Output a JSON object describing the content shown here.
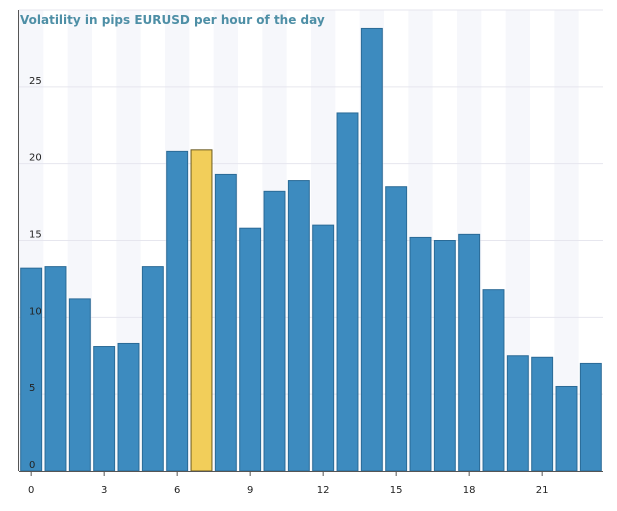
{
  "chart_data": {
    "type": "bar",
    "title": "Volatility in pips EURUSD per hour of the day",
    "xlabel": "",
    "ylabel": "",
    "categories": [
      0,
      1,
      2,
      3,
      4,
      5,
      6,
      7,
      8,
      9,
      10,
      11,
      12,
      13,
      14,
      15,
      16,
      17,
      18,
      19,
      20,
      21,
      22,
      23
    ],
    "values": [
      13.2,
      13.3,
      11.2,
      8.1,
      8.3,
      13.3,
      20.8,
      20.9,
      19.3,
      15.8,
      18.2,
      18.9,
      16.0,
      23.3,
      28.8,
      18.5,
      15.2,
      15.0,
      15.4,
      11.8,
      7.5,
      7.4,
      5.5,
      7.0
    ],
    "highlight_index": 7,
    "ylim": [
      0,
      30
    ],
    "y_ticks": [
      0,
      5,
      10,
      15,
      20,
      25
    ],
    "x_ticks": [
      0,
      3,
      6,
      9,
      12,
      15,
      18,
      21
    ],
    "grid": true,
    "colors": {
      "bar": "#3d8bbf",
      "bar_stroke": "#2a6a96",
      "highlight": "#f2ce5a",
      "highlight_stroke": "#6b5a20",
      "title": "#4e8fa6",
      "grid": "#e6e6ee",
      "axis": "#555555"
    }
  }
}
